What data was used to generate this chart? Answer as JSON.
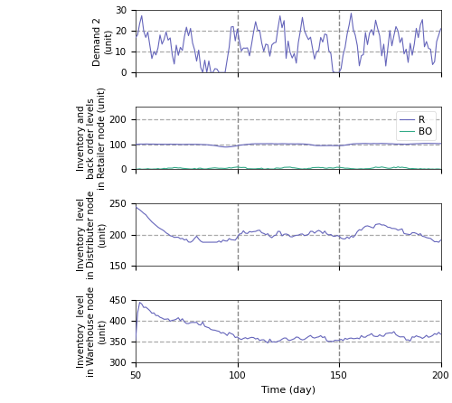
{
  "xlim": [
    50,
    200
  ],
  "x_ticks": [
    50,
    100,
    150,
    200
  ],
  "vlines": [
    100,
    150
  ],
  "vline_color": "#888888",
  "line_color_blue": "#6666bb",
  "line_color_green": "#33aa88",
  "dashed_gray": "#aaaaaa",
  "subplot1": {
    "ylabel": "Demand 2\n(unit)",
    "ylim": [
      0,
      30
    ],
    "yticks": [
      0,
      10,
      20,
      30
    ],
    "hlines": [
      10,
      20
    ]
  },
  "subplot2": {
    "ylabel": "Inventory and\nback order levels\nin Retailer node (unit)",
    "ylim": [
      0,
      250
    ],
    "yticks": [
      0,
      100,
      200
    ],
    "hlines": [
      100,
      200
    ],
    "legend_labels": [
      "R",
      "BO"
    ]
  },
  "subplot3": {
    "ylabel": "Inventory  level\nin Distributer node\n(unit)",
    "ylim": [
      150,
      250
    ],
    "yticks": [
      150,
      200,
      250
    ],
    "hlines": [
      200
    ]
  },
  "subplot4": {
    "ylabel": "Inventory  level\nin Warehouse node\n(unit)",
    "ylim": [
      300,
      450
    ],
    "yticks": [
      300,
      350,
      400,
      450
    ],
    "hlines": [
      350,
      400
    ],
    "xlabel": "Time (day)"
  }
}
